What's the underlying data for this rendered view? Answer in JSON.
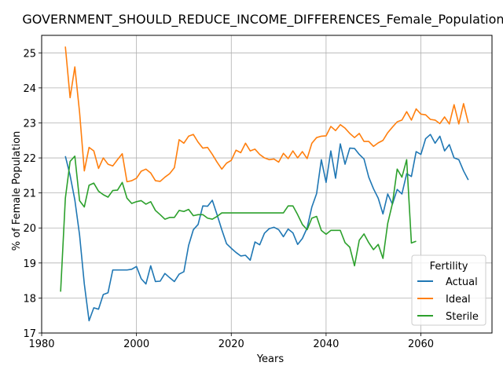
{
  "chart_data": {
    "type": "line",
    "title": "GOVERNMENT_SHOULD_REDUCE_INCOME_DIFFERENCES_Female_Population_so",
    "xlabel": "Years",
    "ylabel": "% of Female Population",
    "xlim": [
      1980,
      2075
    ],
    "ylim": [
      17,
      25.5
    ],
    "xticks": [
      1980,
      2000,
      2020,
      2040,
      2060
    ],
    "yticks": [
      17,
      18,
      19,
      20,
      21,
      22,
      23,
      24,
      25
    ],
    "grid": true,
    "legend": {
      "title": "Fertility",
      "placement": "lower-right"
    },
    "series": [
      {
        "name": "Actual",
        "color": "#1f77b4",
        "points": [
          [
            1985,
            22.05
          ],
          [
            1986,
            21.5
          ],
          [
            1987,
            20.8
          ],
          [
            1988,
            19.8
          ],
          [
            1989,
            18.4
          ],
          [
            1990,
            17.35
          ],
          [
            1991,
            17.72
          ],
          [
            1992,
            17.68
          ],
          [
            1993,
            18.1
          ],
          [
            1994,
            18.15
          ],
          [
            1995,
            18.8
          ],
          [
            1996,
            18.8
          ],
          [
            1997,
            18.8
          ],
          [
            1998,
            18.8
          ],
          [
            1999,
            18.82
          ],
          [
            2000,
            18.9
          ],
          [
            2001,
            18.55
          ],
          [
            2002,
            18.4
          ],
          [
            2003,
            18.92
          ],
          [
            2004,
            18.47
          ],
          [
            2005,
            18.48
          ],
          [
            2006,
            18.7
          ],
          [
            2007,
            18.58
          ],
          [
            2008,
            18.47
          ],
          [
            2009,
            18.68
          ],
          [
            2010,
            18.75
          ],
          [
            2011,
            19.5
          ],
          [
            2012,
            19.95
          ],
          [
            2013,
            20.1
          ],
          [
            2014,
            20.63
          ],
          [
            2015,
            20.62
          ],
          [
            2016,
            20.79
          ],
          [
            2017,
            20.38
          ],
          [
            2018,
            19.95
          ],
          [
            2019,
            19.55
          ],
          [
            2020,
            19.42
          ],
          [
            2021,
            19.3
          ],
          [
            2022,
            19.2
          ],
          [
            2023,
            19.22
          ],
          [
            2024,
            19.08
          ],
          [
            2025,
            19.6
          ],
          [
            2026,
            19.52
          ],
          [
            2027,
            19.85
          ],
          [
            2028,
            19.98
          ],
          [
            2029,
            20.02
          ],
          [
            2030,
            19.95
          ],
          [
            2031,
            19.75
          ],
          [
            2032,
            19.97
          ],
          [
            2033,
            19.86
          ],
          [
            2034,
            19.53
          ],
          [
            2035,
            19.7
          ],
          [
            2036,
            20.0
          ],
          [
            2037,
            20.6
          ],
          [
            2038,
            20.98
          ],
          [
            2039,
            21.95
          ],
          [
            2040,
            21.3
          ],
          [
            2041,
            22.2
          ],
          [
            2042,
            21.42
          ],
          [
            2043,
            22.4
          ],
          [
            2044,
            21.82
          ],
          [
            2045,
            22.28
          ],
          [
            2046,
            22.27
          ],
          [
            2047,
            22.1
          ],
          [
            2048,
            21.97
          ],
          [
            2049,
            21.45
          ],
          [
            2050,
            21.12
          ],
          [
            2051,
            20.85
          ],
          [
            2052,
            20.4
          ],
          [
            2053,
            20.97
          ],
          [
            2054,
            20.68
          ],
          [
            2055,
            21.1
          ],
          [
            2056,
            20.97
          ],
          [
            2057,
            21.55
          ],
          [
            2058,
            21.47
          ],
          [
            2059,
            22.18
          ],
          [
            2060,
            22.1
          ],
          [
            2061,
            22.55
          ],
          [
            2062,
            22.67
          ],
          [
            2063,
            22.42
          ],
          [
            2064,
            22.62
          ],
          [
            2065,
            22.2
          ],
          [
            2066,
            22.38
          ],
          [
            2067,
            22.0
          ],
          [
            2068,
            21.95
          ],
          [
            2069,
            21.63
          ],
          [
            2070,
            21.37
          ]
        ]
      },
      {
        "name": "Ideal",
        "color": "#ff7f0e",
        "points": [
          [
            1985,
            25.18
          ],
          [
            1986,
            23.72
          ],
          [
            1987,
            24.6
          ],
          [
            1988,
            23.3
          ],
          [
            1989,
            21.63
          ],
          [
            1990,
            22.3
          ],
          [
            1991,
            22.2
          ],
          [
            1992,
            21.7
          ],
          [
            1993,
            22.0
          ],
          [
            1994,
            21.82
          ],
          [
            1995,
            21.77
          ],
          [
            1996,
            21.95
          ],
          [
            1997,
            22.12
          ],
          [
            1998,
            21.32
          ],
          [
            1999,
            21.35
          ],
          [
            2000,
            21.42
          ],
          [
            2001,
            21.62
          ],
          [
            2002,
            21.68
          ],
          [
            2003,
            21.57
          ],
          [
            2004,
            21.35
          ],
          [
            2005,
            21.33
          ],
          [
            2006,
            21.45
          ],
          [
            2007,
            21.55
          ],
          [
            2008,
            21.72
          ],
          [
            2009,
            22.52
          ],
          [
            2010,
            22.42
          ],
          [
            2011,
            22.62
          ],
          [
            2012,
            22.67
          ],
          [
            2013,
            22.45
          ],
          [
            2014,
            22.28
          ],
          [
            2015,
            22.3
          ],
          [
            2016,
            22.1
          ],
          [
            2017,
            21.88
          ],
          [
            2018,
            21.68
          ],
          [
            2019,
            21.85
          ],
          [
            2020,
            21.93
          ],
          [
            2021,
            22.22
          ],
          [
            2022,
            22.15
          ],
          [
            2023,
            22.42
          ],
          [
            2024,
            22.2
          ],
          [
            2025,
            22.25
          ],
          [
            2026,
            22.1
          ],
          [
            2027,
            22.0
          ],
          [
            2028,
            21.95
          ],
          [
            2029,
            21.97
          ],
          [
            2030,
            21.88
          ],
          [
            2031,
            22.13
          ],
          [
            2032,
            21.98
          ],
          [
            2033,
            22.2
          ],
          [
            2034,
            22.0
          ],
          [
            2035,
            22.18
          ],
          [
            2036,
            21.98
          ],
          [
            2037,
            22.42
          ],
          [
            2038,
            22.58
          ],
          [
            2039,
            22.62
          ],
          [
            2040,
            22.63
          ],
          [
            2041,
            22.9
          ],
          [
            2042,
            22.78
          ],
          [
            2043,
            22.95
          ],
          [
            2044,
            22.85
          ],
          [
            2045,
            22.7
          ],
          [
            2046,
            22.58
          ],
          [
            2047,
            22.7
          ],
          [
            2048,
            22.47
          ],
          [
            2049,
            22.47
          ],
          [
            2050,
            22.33
          ],
          [
            2051,
            22.43
          ],
          [
            2052,
            22.5
          ],
          [
            2053,
            22.72
          ],
          [
            2054,
            22.88
          ],
          [
            2055,
            23.03
          ],
          [
            2056,
            23.08
          ],
          [
            2057,
            23.32
          ],
          [
            2058,
            23.08
          ],
          [
            2059,
            23.4
          ],
          [
            2060,
            23.25
          ],
          [
            2061,
            23.23
          ],
          [
            2062,
            23.1
          ],
          [
            2063,
            23.08
          ],
          [
            2064,
            22.98
          ],
          [
            2065,
            23.17
          ],
          [
            2066,
            22.97
          ],
          [
            2067,
            23.52
          ],
          [
            2068,
            22.97
          ],
          [
            2069,
            23.55
          ],
          [
            2070,
            23.0
          ]
        ]
      },
      {
        "name": "Sterile",
        "color": "#2ca02c",
        "points": [
          [
            1984,
            18.18
          ],
          [
            1985,
            20.85
          ],
          [
            1986,
            21.9
          ],
          [
            1987,
            22.05
          ],
          [
            1988,
            20.78
          ],
          [
            1989,
            20.6
          ],
          [
            1990,
            21.22
          ],
          [
            1991,
            21.28
          ],
          [
            1992,
            21.05
          ],
          [
            1993,
            20.95
          ],
          [
            1994,
            20.88
          ],
          [
            1995,
            21.07
          ],
          [
            1996,
            21.08
          ],
          [
            1997,
            21.3
          ],
          [
            1998,
            20.85
          ],
          [
            1999,
            20.7
          ],
          [
            2000,
            20.75
          ],
          [
            2001,
            20.78
          ],
          [
            2002,
            20.68
          ],
          [
            2003,
            20.75
          ],
          [
            2004,
            20.5
          ],
          [
            2005,
            20.38
          ],
          [
            2006,
            20.25
          ],
          [
            2007,
            20.3
          ],
          [
            2008,
            20.3
          ],
          [
            2009,
            20.5
          ],
          [
            2010,
            20.47
          ],
          [
            2011,
            20.53
          ],
          [
            2012,
            20.35
          ],
          [
            2013,
            20.38
          ],
          [
            2014,
            20.38
          ],
          [
            2015,
            20.28
          ],
          [
            2016,
            20.25
          ],
          [
            2017,
            20.33
          ],
          [
            2018,
            20.43
          ],
          [
            2019,
            20.43
          ],
          [
            2020,
            20.43
          ],
          [
            2021,
            20.43
          ],
          [
            2022,
            20.43
          ],
          [
            2023,
            20.43
          ],
          [
            2024,
            20.43
          ],
          [
            2025,
            20.43
          ],
          [
            2026,
            20.43
          ],
          [
            2027,
            20.43
          ],
          [
            2028,
            20.43
          ],
          [
            2029,
            20.43
          ],
          [
            2030,
            20.43
          ],
          [
            2031,
            20.43
          ],
          [
            2032,
            20.63
          ],
          [
            2033,
            20.63
          ],
          [
            2034,
            20.38
          ],
          [
            2035,
            20.1
          ],
          [
            2036,
            19.95
          ],
          [
            2037,
            20.28
          ],
          [
            2038,
            20.33
          ],
          [
            2039,
            19.93
          ],
          [
            2040,
            19.82
          ],
          [
            2041,
            19.93
          ],
          [
            2042,
            19.93
          ],
          [
            2043,
            19.93
          ],
          [
            2044,
            19.58
          ],
          [
            2045,
            19.45
          ],
          [
            2046,
            18.92
          ],
          [
            2047,
            19.65
          ],
          [
            2048,
            19.83
          ],
          [
            2049,
            19.58
          ],
          [
            2050,
            19.38
          ],
          [
            2051,
            19.53
          ],
          [
            2052,
            19.13
          ],
          [
            2053,
            20.13
          ],
          [
            2054,
            20.7
          ],
          [
            2055,
            21.68
          ],
          [
            2056,
            21.45
          ],
          [
            2057,
            21.95
          ],
          [
            2058,
            19.57
          ],
          [
            2059,
            19.62
          ]
        ]
      }
    ]
  }
}
